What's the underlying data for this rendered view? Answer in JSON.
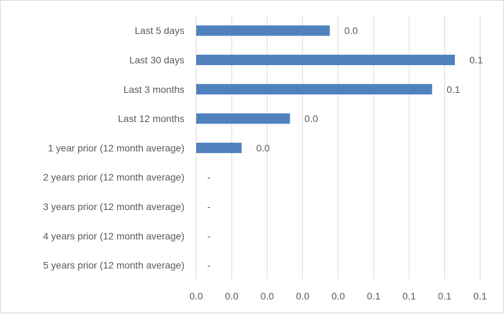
{
  "chart_data": {
    "type": "bar",
    "orientation": "horizontal",
    "categories": [
      "Last 5 days",
      "Last 30 days",
      "Last 3 months",
      "Last 12 months",
      "1 year prior (12 month average)",
      "2 years prior (12 month average)",
      "3 years prior (12 month average)",
      "4 years prior (12 month average)",
      "5 years prior (12 month average)"
    ],
    "values": [
      0.047,
      0.091,
      0.083,
      0.033,
      0.016,
      null,
      null,
      null,
      null
    ],
    "data_labels": [
      "0.0",
      "0.1",
      "0.1",
      "0.0",
      "0.0",
      "-",
      "-",
      "-",
      "-"
    ],
    "x_tick_labels": [
      "0.0",
      "0.0",
      "0.0",
      "0.0",
      "0.0",
      "0.1",
      "0.1",
      "0.1",
      "0.1"
    ],
    "xlim": [
      0,
      0.1
    ],
    "grid": true,
    "bar_color": "#4f81bd",
    "grid_color": "#d9d9d9",
    "title": "",
    "xlabel": "",
    "ylabel": ""
  }
}
